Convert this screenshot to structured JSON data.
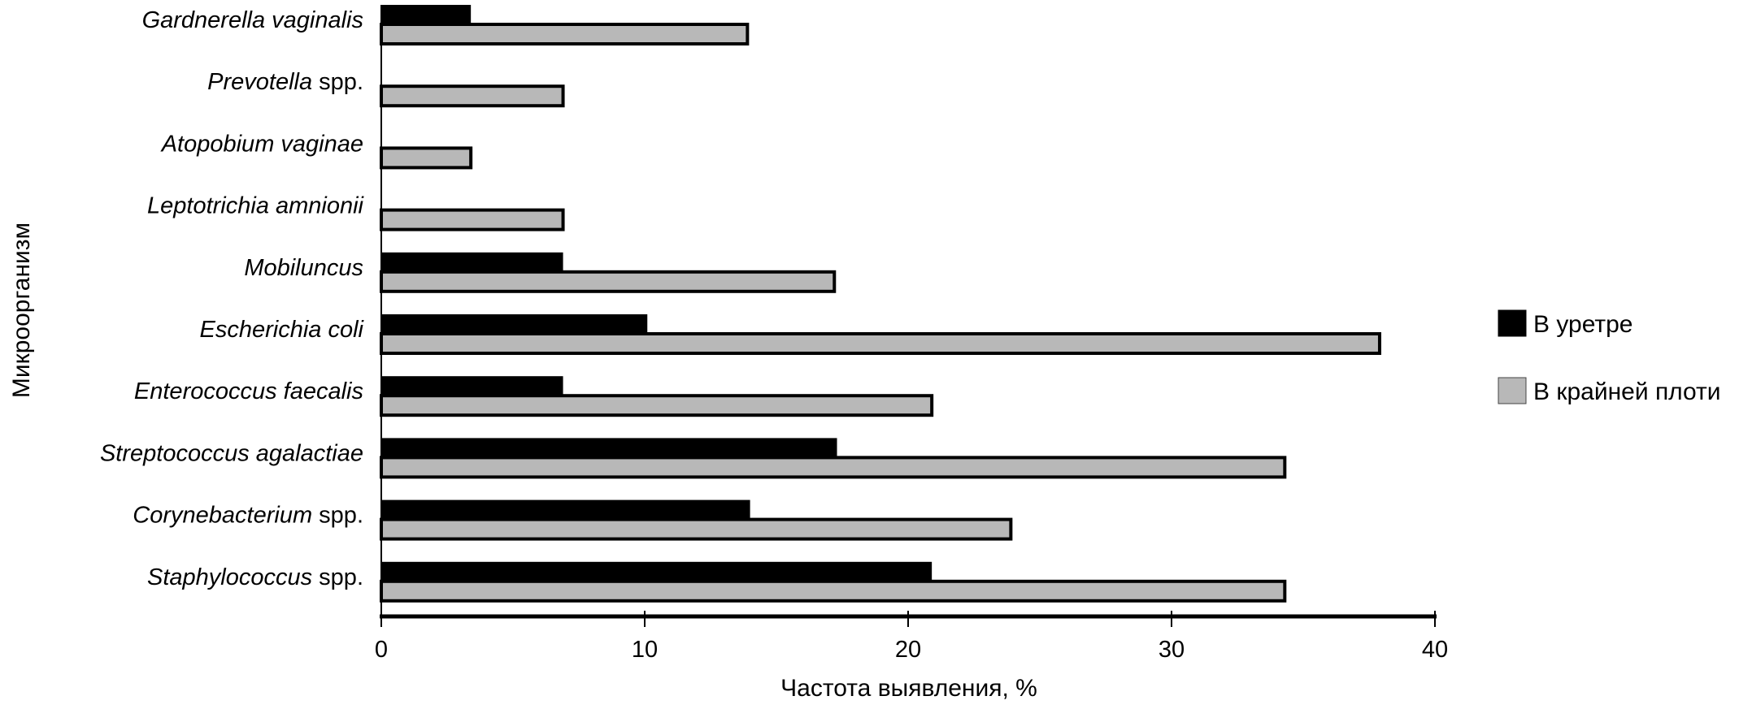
{
  "chart_data": {
    "type": "bar",
    "orientation": "horizontal",
    "xlabel": "Частота выявления, %",
    "ylabel": "Микроорганизм",
    "xlim": [
      0,
      40
    ],
    "xticks": [
      0,
      10,
      20,
      30,
      40
    ],
    "grid": false,
    "legend_position": "right",
    "categories": [
      {
        "parts": [
          {
            "text": "Gardnerella vaginalis",
            "italic": true
          }
        ]
      },
      {
        "parts": [
          {
            "text": "Prevotella",
            "italic": true
          },
          {
            "text": " spp.",
            "italic": false
          }
        ]
      },
      {
        "parts": [
          {
            "text": "Atopobium vaginae",
            "italic": true
          }
        ]
      },
      {
        "parts": [
          {
            "text": "Leptotrichia amnionii",
            "italic": true
          }
        ]
      },
      {
        "parts": [
          {
            "text": "Mobiluncus",
            "italic": true
          }
        ]
      },
      {
        "parts": [
          {
            "text": "Escherichia coli",
            "italic": true
          }
        ]
      },
      {
        "parts": [
          {
            "text": "Enterococcus faecalis",
            "italic": true
          }
        ]
      },
      {
        "parts": [
          {
            "text": "Streptococcus agalactiae",
            "italic": true
          }
        ]
      },
      {
        "parts": [
          {
            "text": "Corynebacterium",
            "italic": true
          },
          {
            "text": " spp.",
            "italic": false
          }
        ]
      },
      {
        "parts": [
          {
            "text": "Staphylococcus",
            "italic": true
          },
          {
            "text": " spp.",
            "italic": false
          }
        ]
      }
    ],
    "series": [
      {
        "name": "В уретре",
        "color": "#000000",
        "values": [
          3.4,
          0,
          0,
          0,
          6.9,
          10.1,
          6.9,
          17.3,
          14.0,
          20.9
        ]
      },
      {
        "name": "В крайней плоти",
        "color": "#b8b8b8",
        "values": [
          13.9,
          6.9,
          3.4,
          6.9,
          17.2,
          37.9,
          20.9,
          34.3,
          23.9,
          34.3
        ]
      }
    ]
  }
}
